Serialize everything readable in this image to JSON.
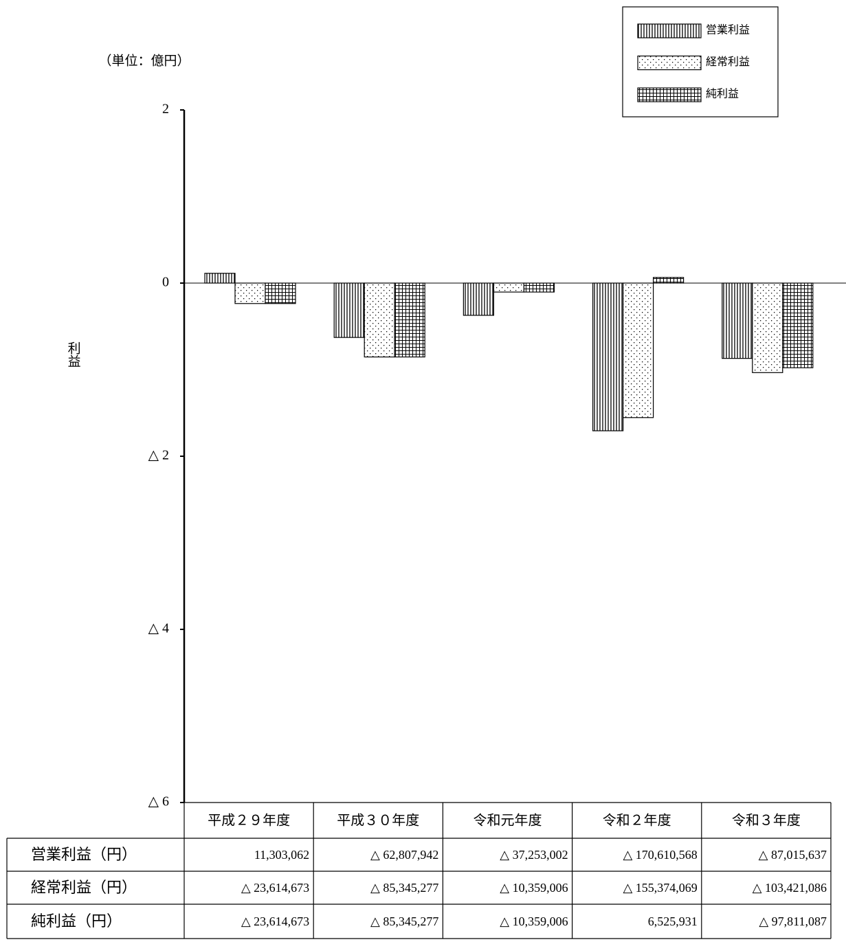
{
  "chart_data": {
    "type": "bar",
    "unit_label": "（単位：億円）",
    "y_label": "利益",
    "categories": [
      "平成２９年度",
      "平成３０年度",
      "令和元年度",
      "令和２年度",
      "令和３年度"
    ],
    "series": [
      {
        "name": "営業利益",
        "row_label": "営業利益（円）",
        "pattern": "vertical",
        "color": "#000000",
        "values": [
          0.11303062,
          -0.62807942,
          -0.37253002,
          -1.70610568,
          -0.87015637
        ],
        "value_labels": [
          "11,303,062",
          "△ 62,807,942",
          "△ 37,253,002",
          "△ 170,610,568",
          "△ 87,015,637"
        ]
      },
      {
        "name": "経常利益",
        "row_label": "経常利益（円）",
        "pattern": "dots",
        "color": "#000000",
        "values": [
          -0.23614673,
          -0.85345277,
          -0.10359006,
          -1.55374069,
          -1.03421086
        ],
        "value_labels": [
          "△ 23,614,673",
          "△ 85,345,277",
          "△ 10,359,006",
          "△ 155,374,069",
          "△ 103,421,086"
        ]
      },
      {
        "name": "純利益",
        "row_label": "純利益（円）",
        "pattern": "grid",
        "color": "#000000",
        "values": [
          -0.23614673,
          -0.85345277,
          -0.10359006,
          0.06525931,
          -0.97811087
        ],
        "value_labels": [
          "△ 23,614,673",
          "△ 85,345,277",
          "△ 10,359,006",
          "6,525,931",
          "△ 97,811,087"
        ]
      }
    ],
    "ylim": [
      -6,
      2
    ],
    "yticks": [
      {
        "value": -6,
        "label": "△ 6"
      },
      {
        "value": -4,
        "label": "△ 4"
      },
      {
        "value": -2,
        "label": "△ 2"
      },
      0,
      2
    ],
    "legend": "top-right"
  }
}
